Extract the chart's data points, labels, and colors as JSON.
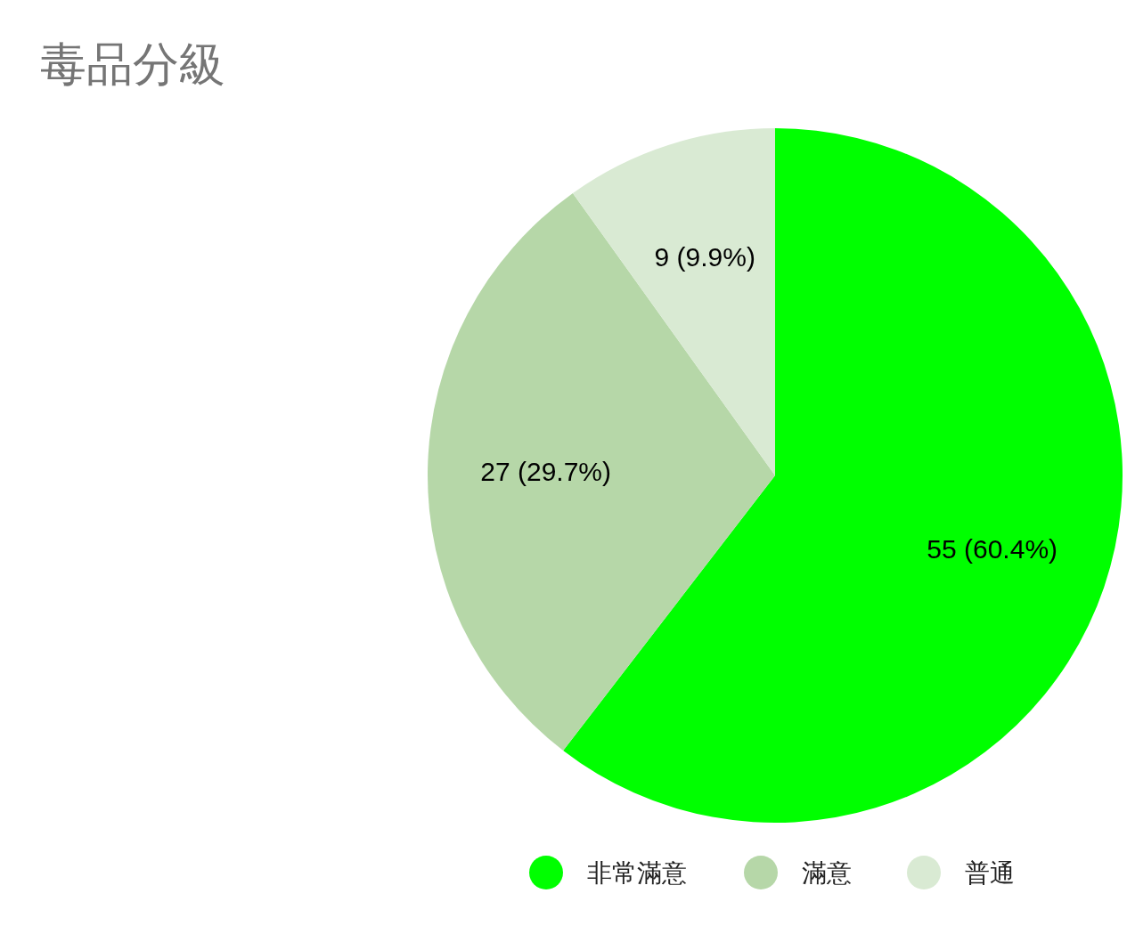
{
  "chart_data": {
    "type": "pie",
    "title": "毒品分級",
    "categories": [
      "非常滿意",
      "滿意",
      "普通"
    ],
    "values": [
      55,
      27,
      9
    ],
    "colors": [
      "#00ff00",
      "#b6d7a8",
      "#d9ead3"
    ],
    "value_labels": [
      "55 (60.4%)",
      "27 (29.7%)",
      "9 (9.9%)"
    ],
    "legend": "bottom"
  }
}
